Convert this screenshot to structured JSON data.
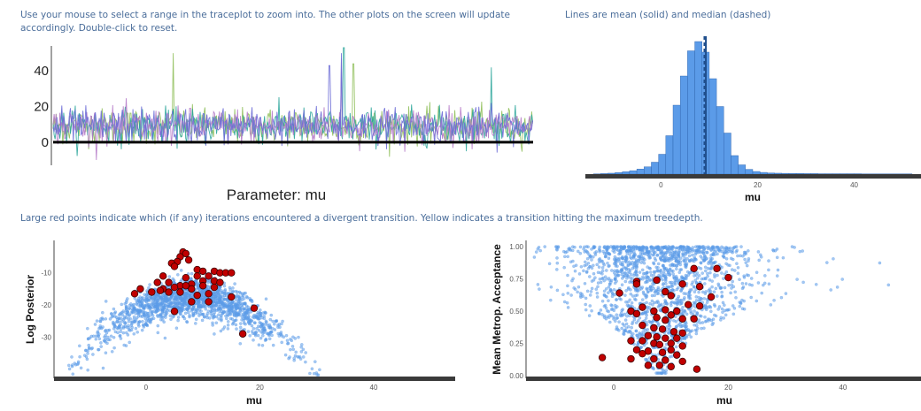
{
  "notes": {
    "traceplot": "Use your mouse to select a range in the traceplot to zoom into. The other plots on the screen will update accordingly. Double-click to reset.",
    "histogram": "Lines are mean (solid) and median (dashed)",
    "divergence": "Large red points indicate which (if any) iterations encountered a divergent transition. Yellow indicates a transition hitting the maximum treedepth."
  },
  "colors": {
    "note_text": "#4a6d9a",
    "hist_fill": "#5b9be8",
    "hist_stroke": "#2a5fa8",
    "mean_line": "#1f4e8c",
    "scatter_point": "#5b9be8",
    "divergent_point": "#c00000",
    "chain_colors": [
      "#8fbf5a",
      "#2aa59a",
      "#b57ac8",
      "#6b6bd6"
    ]
  },
  "chart_data": [
    {
      "type": "line",
      "name": "traceplot",
      "title": "Parameter: mu",
      "yticks": [
        0,
        20,
        40
      ],
      "ylim": [
        -12,
        55
      ],
      "iterations": 1000,
      "chains": 4,
      "center": 9,
      "spread": 9,
      "spikes": [
        {
          "chain": 0,
          "iter": 250,
          "value": 50
        },
        {
          "chain": 1,
          "iter": 605,
          "value": 53
        },
        {
          "chain": 3,
          "iter": 600,
          "value": 50
        },
        {
          "chain": 2,
          "iter": 600,
          "value": 47
        },
        {
          "chain": 0,
          "iter": 625,
          "value": 44
        },
        {
          "chain": 1,
          "iter": 912,
          "value": 42
        },
        {
          "chain": 3,
          "iter": 575,
          "value": 43
        }
      ],
      "zero_line": 0
    },
    {
      "type": "bar",
      "name": "histogram",
      "xlabel": "mu",
      "xticks": [
        0,
        20,
        40
      ],
      "xlim": [
        -14,
        52
      ],
      "bin_width": 1.5,
      "bin_starts": [
        -14,
        -12.5,
        -11,
        -9.5,
        -8,
        -6.5,
        -5,
        -3.5,
        -2,
        -0.5,
        1,
        2.5,
        4,
        5.5,
        7,
        8.5,
        10,
        11.5,
        13,
        14.5,
        16,
        17.5,
        19,
        20.5,
        22,
        23.5,
        25,
        26.5,
        28,
        29.5,
        31,
        32.5,
        34,
        35.5,
        37,
        38.5,
        40,
        41.5,
        43,
        44.5,
        46,
        47.5,
        49,
        50.5
      ],
      "values": [
        0.2,
        0.4,
        0.7,
        1.2,
        1.8,
        2.6,
        3.8,
        5.5,
        9,
        15,
        29,
        52,
        74,
        93,
        100,
        92,
        72,
        51,
        31,
        14,
        7,
        3.6,
        2,
        1.3,
        0.9,
        0.7,
        0.6,
        0.5,
        0.5,
        0.4,
        0.4,
        0.3,
        0.3,
        0.3,
        0.3,
        0.3,
        0.3,
        0.2,
        0.2,
        0.2,
        0.2,
        0.2,
        0.2,
        0.2
      ],
      "mean": 9.3,
      "median": 9.0
    },
    {
      "type": "scatter",
      "name": "log-posterior-vs-mu",
      "xlabel": "mu",
      "ylabel": "Log Posterior",
      "xticks": [
        0,
        20,
        40
      ],
      "yticks": [
        -10,
        -20,
        -30
      ],
      "xlim": [
        -16,
        54
      ],
      "ylim": [
        -41,
        -33
      ],
      "points_sample_size": 1700,
      "divergent": [
        [
          6.5,
          -3.5
        ],
        [
          7,
          -4
        ],
        [
          6,
          -5
        ],
        [
          7.5,
          -6
        ],
        [
          5.5,
          -6.5
        ],
        [
          4.5,
          -7
        ],
        [
          5,
          -8
        ],
        [
          9,
          -9
        ],
        [
          10,
          -9.5
        ],
        [
          12,
          -9.5
        ],
        [
          13,
          -10
        ],
        [
          14,
          -10
        ],
        [
          15,
          -10
        ],
        [
          9,
          -11
        ],
        [
          3,
          -11
        ],
        [
          11,
          -11
        ],
        [
          7,
          -11.5
        ],
        [
          10,
          -12.5
        ],
        [
          12,
          -12.5
        ],
        [
          4,
          -13
        ],
        [
          2,
          -13
        ],
        [
          8,
          -13.5
        ],
        [
          13,
          -13
        ],
        [
          6,
          -14
        ],
        [
          10,
          -14
        ],
        [
          3,
          -15
        ],
        [
          5,
          -14.5
        ],
        [
          7,
          -14
        ],
        [
          8,
          -15
        ],
        [
          12,
          -14.5
        ],
        [
          2.5,
          -15.5
        ],
        [
          -1,
          -15
        ],
        [
          4,
          -16
        ],
        [
          1,
          -16
        ],
        [
          11,
          -16.5
        ],
        [
          -2,
          -16.5
        ],
        [
          6,
          -16
        ],
        [
          9,
          -17
        ],
        [
          15,
          -17.5
        ],
        [
          11,
          -19
        ],
        [
          8,
          -19
        ],
        [
          19,
          -21
        ],
        [
          5,
          -22
        ],
        [
          17,
          -29
        ]
      ]
    },
    {
      "type": "scatter",
      "name": "acceptance-vs-mu",
      "xlabel": "mu",
      "ylabel": "Mean Metrop. Acceptance",
      "xticks": [
        0,
        20,
        40
      ],
      "yticks": [
        1.0,
        0.75,
        0.5,
        0.25,
        0.0
      ],
      "ytick_labels": [
        "1.00",
        "0.75",
        "0.50",
        "0.25",
        "0.00"
      ],
      "xlim": [
        -14,
        52
      ],
      "ylim": [
        -0.01,
        1.02
      ],
      "points_sample_size": 1700,
      "divergent": [
        [
          14,
          0.83
        ],
        [
          18,
          0.83
        ],
        [
          20,
          0.76
        ],
        [
          4,
          0.73
        ],
        [
          4,
          0.71
        ],
        [
          7.5,
          0.74
        ],
        [
          12,
          0.71
        ],
        [
          9,
          0.65
        ],
        [
          15,
          0.69
        ],
        [
          1,
          0.64
        ],
        [
          10,
          0.62
        ],
        [
          17,
          0.61
        ],
        [
          3,
          0.5
        ],
        [
          5,
          0.53
        ],
        [
          7,
          0.5
        ],
        [
          9,
          0.51
        ],
        [
          11,
          0.5
        ],
        [
          13,
          0.55
        ],
        [
          15,
          0.54
        ],
        [
          4,
          0.48
        ],
        [
          7.5,
          0.45
        ],
        [
          9,
          0.43
        ],
        [
          10,
          0.47
        ],
        [
          12,
          0.44
        ],
        [
          14,
          0.44
        ],
        [
          5,
          0.39
        ],
        [
          7,
          0.37
        ],
        [
          8.5,
          0.36
        ],
        [
          10.5,
          0.34
        ],
        [
          12,
          0.33
        ],
        [
          6,
          0.31
        ],
        [
          7.5,
          0.3
        ],
        [
          9,
          0.29
        ],
        [
          11,
          0.29
        ],
        [
          3,
          0.27
        ],
        [
          5,
          0.27
        ],
        [
          7,
          0.25
        ],
        [
          8,
          0.24
        ],
        [
          10,
          0.25
        ],
        [
          12,
          0.23
        ],
        [
          4,
          0.2
        ],
        [
          6,
          0.19
        ],
        [
          8.5,
          0.18
        ],
        [
          10,
          0.2
        ],
        [
          11,
          0.16
        ],
        [
          5,
          0.17
        ],
        [
          7,
          0.13
        ],
        [
          9,
          0.12
        ],
        [
          12,
          0.11
        ],
        [
          3,
          0.13
        ],
        [
          8,
          0.08
        ],
        [
          10,
          0.07
        ],
        [
          6,
          0.08
        ],
        [
          14.5,
          0.05
        ],
        [
          -2,
          0.14
        ]
      ]
    }
  ]
}
